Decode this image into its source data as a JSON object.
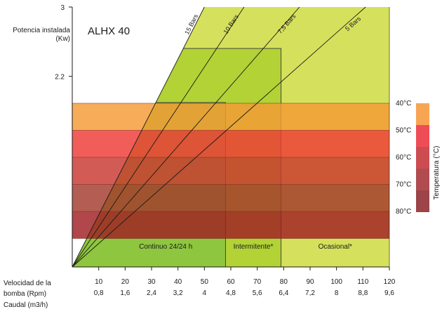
{
  "chart_data": {
    "type": "area",
    "title": "ALHX 40",
    "y_axis": {
      "label_line1": "Potencia instalada",
      "label_line2": "(Kw)",
      "ticks": [
        {
          "value": 3,
          "label": "3"
        },
        {
          "value": 2.2,
          "label": "2.2"
        }
      ],
      "ylim": [
        0,
        3
      ]
    },
    "x_axis": {
      "row1_label_line1": "Velocidad de la",
      "row1_label_line2": "bomba (Rpm)",
      "row2_label": "Caudal (m3/h)",
      "rpm_ticks": [
        "10",
        "20",
        "30",
        "40",
        "50",
        "60",
        "70",
        "80",
        "90",
        "100",
        "110",
        "120"
      ],
      "flow_ticks": [
        "0,8",
        "1,6",
        "2,4",
        "3,2",
        "4",
        "4,8",
        "5,6",
        "6,4",
        "7,2",
        "8",
        "8,8",
        "9,6"
      ],
      "xlim": [
        0,
        120
      ]
    },
    "zones": [
      {
        "name": "Continuo 24/24 h",
        "from": 0,
        "to": 58,
        "color": "#8ec63f"
      },
      {
        "name": "Intermitente*",
        "from": 58,
        "to": 79,
        "color": "#b2d235"
      },
      {
        "name": "Ocasional*",
        "from": 79,
        "to": 120,
        "color": "#d5e15c"
      }
    ],
    "pressure_lines": [
      {
        "label": "15 Bars",
        "top_x": 50
      },
      {
        "label": "10 Bars",
        "top_x": 65
      },
      {
        "label": "7,5 Bars",
        "top_x": 86
      },
      {
        "label": "5 Bars",
        "top_x": 111
      }
    ],
    "temperature_bands": [
      {
        "label": "40°C",
        "color": "#f49a35"
      },
      {
        "label": "50°C",
        "color": "#ee3b36"
      },
      {
        "label": "60°C",
        "color": "#c8382f"
      },
      {
        "label": "70°C",
        "color": "#a3392c"
      },
      {
        "label": "80°C",
        "color": "#a01f23"
      }
    ],
    "temperature_legend": {
      "label": "Temperatura (°C)",
      "colors": [
        "#f7a552",
        "#ee4d57",
        "#cc4c52",
        "#b04c4f",
        "#9c4448"
      ]
    }
  }
}
